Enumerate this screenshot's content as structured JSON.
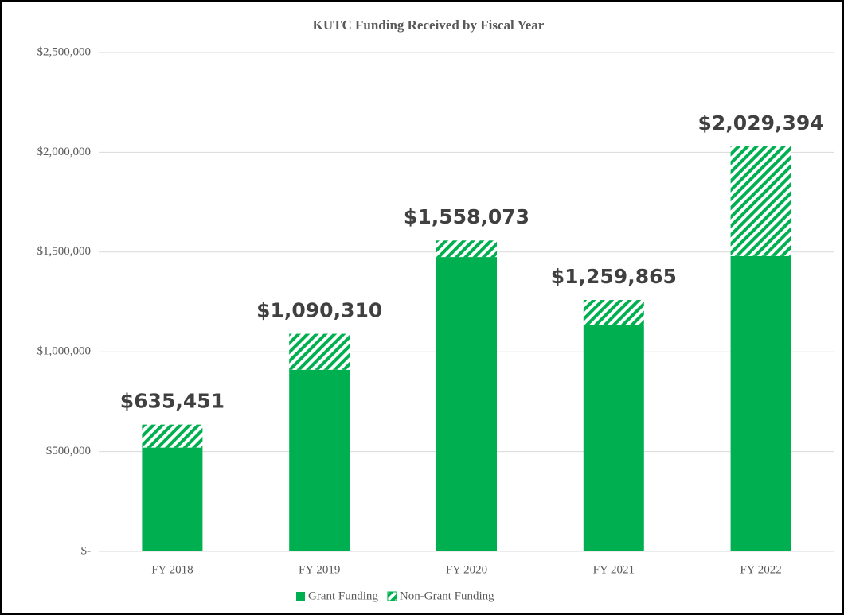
{
  "chart_data": {
    "type": "stacked_bar",
    "title": "KUTC Funding Received by Fiscal Year",
    "categories": [
      "FY 2018",
      "FY 2019",
      "FY 2020",
      "FY 2021",
      "FY 2022"
    ],
    "series": [
      {
        "name": "Grant Funding",
        "color": "#00b050",
        "values": [
          520000,
          910000,
          1475000,
          1135000,
          1480000
        ]
      },
      {
        "name": "Non-Grant Funding",
        "color": "#00b050",
        "pattern": "hatch",
        "values": [
          115451,
          180310,
          83073,
          124865,
          549394
        ]
      }
    ],
    "totals": [
      635451,
      1090310,
      1558073,
      1259865,
      2029394
    ],
    "total_labels": [
      "$635,451",
      "$1,090,310",
      "$1,558,073",
      "$1,259,865",
      "$2,029,394"
    ],
    "ylim": [
      0,
      2500000
    ],
    "yticks": [
      {
        "value": 0,
        "label": "$-"
      },
      {
        "value": 500000,
        "label": "$500,000"
      },
      {
        "value": 1000000,
        "label": "$1,000,000"
      },
      {
        "value": 1500000,
        "label": "$1,500,000"
      },
      {
        "value": 2000000,
        "label": "$2,000,000"
      },
      {
        "value": 2500000,
        "label": "$2,500,000"
      }
    ],
    "grid": true,
    "legend": "bottom"
  }
}
